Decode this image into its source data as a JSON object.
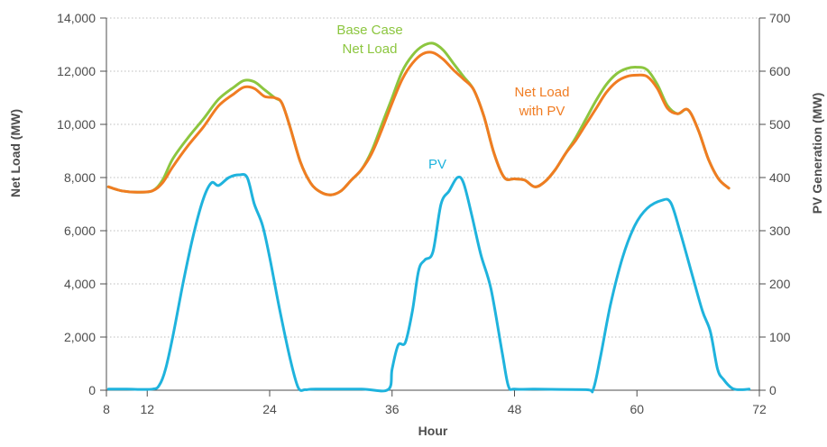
{
  "chart_data": {
    "type": "line",
    "xlabel": "Hour",
    "ylabel_left": "Net Load (MW)",
    "ylabel_right": "PV Generation (MW)",
    "xlim": [
      8,
      72
    ],
    "ylim_left": [
      0,
      14000
    ],
    "ylim_right": [
      0,
      700
    ],
    "x_ticks": [
      8,
      12,
      24,
      36,
      48,
      60,
      72
    ],
    "x_tick_labels": [
      "8",
      "12",
      "24",
      "36",
      "48",
      "60",
      "72"
    ],
    "y_left_ticks": [
      0,
      2000,
      4000,
      6000,
      8000,
      10000,
      12000,
      14000
    ],
    "y_left_tick_labels": [
      "0",
      "2,000",
      "4,000",
      "6,000",
      "8,000",
      "10,000",
      "12,000",
      "14,000"
    ],
    "y_right_ticks": [
      0,
      100,
      200,
      300,
      400,
      500,
      600,
      700
    ],
    "y_right_tick_labels": [
      "0",
      "100",
      "200",
      "300",
      "400",
      "500",
      "600",
      "700"
    ],
    "grid": "horizontal dotted",
    "series": [
      {
        "name": "Base Case Net Load",
        "label_lines": [
          "Base Case",
          "Net Load"
        ],
        "axis": "left",
        "color": "#8cc63f",
        "points": [
          [
            8.2,
            7650
          ],
          [
            9.5,
            7500
          ],
          [
            11.0,
            7450
          ],
          [
            12.5,
            7500
          ],
          [
            13.5,
            7900
          ],
          [
            14.5,
            8700
          ],
          [
            16.0,
            9500
          ],
          [
            17.5,
            10200
          ],
          [
            19.0,
            10950
          ],
          [
            20.5,
            11400
          ],
          [
            21.5,
            11650
          ],
          [
            22.5,
            11600
          ],
          [
            23.5,
            11300
          ],
          [
            24.5,
            11000
          ],
          [
            25.2,
            10800
          ],
          [
            26.0,
            9900
          ],
          [
            27.0,
            8600
          ],
          [
            28.0,
            7800
          ],
          [
            29.0,
            7450
          ],
          [
            30.0,
            7350
          ],
          [
            31.0,
            7500
          ],
          [
            32.0,
            7900
          ],
          [
            33.0,
            8300
          ],
          [
            34.0,
            9000
          ],
          [
            35.0,
            10000
          ],
          [
            36.0,
            11000
          ],
          [
            37.0,
            12000
          ],
          [
            38.0,
            12600
          ],
          [
            39.0,
            12950
          ],
          [
            40.0,
            13050
          ],
          [
            41.0,
            12800
          ],
          [
            42.0,
            12300
          ],
          [
            43.0,
            11800
          ],
          [
            44.0,
            11300
          ],
          [
            45.0,
            10300
          ],
          [
            46.0,
            8900
          ],
          [
            47.0,
            8000
          ],
          [
            48.0,
            7950
          ],
          [
            49.0,
            7900
          ],
          [
            50.0,
            7650
          ],
          [
            51.0,
            7850
          ],
          [
            52.0,
            8300
          ],
          [
            53.0,
            8900
          ],
          [
            54.0,
            9500
          ],
          [
            55.0,
            10200
          ],
          [
            56.0,
            10900
          ],
          [
            57.0,
            11500
          ],
          [
            58.0,
            11900
          ],
          [
            59.0,
            12100
          ],
          [
            60.0,
            12150
          ],
          [
            61.0,
            12050
          ],
          [
            62.0,
            11500
          ],
          [
            63.0,
            10700
          ],
          [
            64.0,
            10400
          ],
          [
            65.0,
            10550
          ],
          [
            66.0,
            9800
          ],
          [
            67.0,
            8700
          ],
          [
            68.0,
            7950
          ],
          [
            69.0,
            7600
          ]
        ]
      },
      {
        "name": "Net Load with PV",
        "label_lines": [
          "Net Load",
          "with PV"
        ],
        "axis": "left",
        "color": "#f07c22",
        "points": [
          [
            8.2,
            7650
          ],
          [
            9.5,
            7500
          ],
          [
            11.0,
            7450
          ],
          [
            12.5,
            7500
          ],
          [
            13.5,
            7800
          ],
          [
            14.5,
            8400
          ],
          [
            16.0,
            9200
          ],
          [
            17.5,
            9900
          ],
          [
            19.0,
            10700
          ],
          [
            20.5,
            11150
          ],
          [
            21.5,
            11400
          ],
          [
            22.5,
            11350
          ],
          [
            23.5,
            11050
          ],
          [
            24.5,
            11000
          ],
          [
            25.2,
            10800
          ],
          [
            26.0,
            9900
          ],
          [
            27.0,
            8600
          ],
          [
            28.0,
            7800
          ],
          [
            29.0,
            7450
          ],
          [
            30.0,
            7350
          ],
          [
            31.0,
            7500
          ],
          [
            32.0,
            7900
          ],
          [
            33.0,
            8300
          ],
          [
            34.0,
            8900
          ],
          [
            35.0,
            9800
          ],
          [
            36.0,
            10800
          ],
          [
            37.0,
            11700
          ],
          [
            38.0,
            12300
          ],
          [
            39.0,
            12650
          ],
          [
            40.0,
            12700
          ],
          [
            41.0,
            12450
          ],
          [
            42.0,
            12050
          ],
          [
            43.0,
            11700
          ],
          [
            44.0,
            11300
          ],
          [
            45.0,
            10300
          ],
          [
            46.0,
            8900
          ],
          [
            47.0,
            8000
          ],
          [
            48.0,
            7950
          ],
          [
            49.0,
            7900
          ],
          [
            50.0,
            7650
          ],
          [
            51.0,
            7850
          ],
          [
            52.0,
            8300
          ],
          [
            53.0,
            8900
          ],
          [
            54.0,
            9400
          ],
          [
            55.0,
            10000
          ],
          [
            56.0,
            10600
          ],
          [
            57.0,
            11200
          ],
          [
            58.0,
            11600
          ],
          [
            59.0,
            11800
          ],
          [
            60.0,
            11850
          ],
          [
            61.0,
            11800
          ],
          [
            62.0,
            11350
          ],
          [
            63.0,
            10600
          ],
          [
            64.0,
            10400
          ],
          [
            65.0,
            10550
          ],
          [
            66.0,
            9800
          ],
          [
            67.0,
            8700
          ],
          [
            68.0,
            7950
          ],
          [
            69.0,
            7600
          ]
        ]
      },
      {
        "name": "PV",
        "label_lines": [
          "PV"
        ],
        "axis": "right",
        "color": "#1fb3dd",
        "points": [
          [
            8.2,
            2
          ],
          [
            10.0,
            2
          ],
          [
            12.5,
            2
          ],
          [
            13.2,
            10
          ],
          [
            13.8,
            40
          ],
          [
            14.5,
            100
          ],
          [
            15.5,
            200
          ],
          [
            16.5,
            290
          ],
          [
            17.5,
            360
          ],
          [
            18.3,
            390
          ],
          [
            19.0,
            385
          ],
          [
            20.0,
            400
          ],
          [
            21.0,
            405
          ],
          [
            21.8,
            400
          ],
          [
            22.5,
            350
          ],
          [
            23.3,
            310
          ],
          [
            24.0,
            250
          ],
          [
            25.0,
            150
          ],
          [
            26.0,
            60
          ],
          [
            26.8,
            5
          ],
          [
            27.5,
            1
          ],
          [
            28.5,
            2
          ],
          [
            33.0,
            2
          ],
          [
            35.6,
            1
          ],
          [
            36.0,
            40
          ],
          [
            36.6,
            85
          ],
          [
            37.3,
            90
          ],
          [
            38.0,
            150
          ],
          [
            38.6,
            225
          ],
          [
            39.2,
            245
          ],
          [
            40.0,
            260
          ],
          [
            40.8,
            350
          ],
          [
            41.6,
            375
          ],
          [
            42.4,
            400
          ],
          [
            43.0,
            390
          ],
          [
            43.8,
            330
          ],
          [
            44.7,
            255
          ],
          [
            45.7,
            190
          ],
          [
            46.8,
            70
          ],
          [
            47.4,
            8
          ],
          [
            48.0,
            2
          ],
          [
            50.0,
            2
          ],
          [
            55.0,
            1
          ],
          [
            55.7,
            1
          ],
          [
            56.4,
            60
          ],
          [
            57.4,
            160
          ],
          [
            58.6,
            250
          ],
          [
            59.8,
            310
          ],
          [
            61.0,
            342
          ],
          [
            62.4,
            357
          ],
          [
            63.3,
            353
          ],
          [
            64.2,
            300
          ],
          [
            65.3,
            225
          ],
          [
            66.4,
            150
          ],
          [
            67.2,
            110
          ],
          [
            67.9,
            40
          ],
          [
            68.5,
            20
          ],
          [
            69.3,
            4
          ],
          [
            70.0,
            1
          ],
          [
            71.0,
            2
          ]
        ]
      }
    ]
  }
}
